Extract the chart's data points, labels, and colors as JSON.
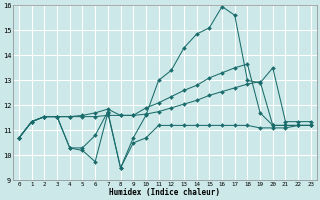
{
  "xlabel": "Humidex (Indice chaleur)",
  "bg_color": "#cce8e8",
  "grid_color": "#ffffff",
  "line_color": "#1a6b6b",
  "xlim": [
    -0.5,
    23.5
  ],
  "ylim": [
    9,
    16
  ],
  "yticks": [
    9,
    10,
    11,
    12,
    13,
    14,
    15,
    16
  ],
  "xticks": [
    0,
    1,
    2,
    3,
    4,
    5,
    6,
    7,
    8,
    9,
    10,
    11,
    12,
    13,
    14,
    15,
    16,
    17,
    18,
    19,
    20,
    21,
    22,
    23
  ],
  "series": [
    {
      "x": [
        0,
        1,
        2,
        3,
        4,
        5,
        6,
        7,
        8,
        9,
        10,
        11,
        12,
        13,
        14,
        15,
        16,
        17,
        18,
        19,
        20,
        21,
        22,
        23
      ],
      "y": [
        10.7,
        11.35,
        11.55,
        11.55,
        10.3,
        10.2,
        9.75,
        11.7,
        9.5,
        10.5,
        10.7,
        11.2,
        11.2,
        11.2,
        11.2,
        11.2,
        11.2,
        11.2,
        11.2,
        11.1,
        11.1,
        11.1,
        11.2,
        11.2
      ]
    },
    {
      "x": [
        0,
        1,
        2,
        3,
        4,
        5,
        6,
        7,
        8,
        9,
        10,
        11,
        12,
        13,
        14,
        15,
        16,
        17,
        18,
        19,
        20,
        21,
        22,
        23
      ],
      "y": [
        10.7,
        11.35,
        11.55,
        11.55,
        11.55,
        11.55,
        11.55,
        11.6,
        11.6,
        11.6,
        11.65,
        11.75,
        11.9,
        12.05,
        12.2,
        12.4,
        12.55,
        12.7,
        12.85,
        12.95,
        11.2,
        11.2,
        11.2,
        11.2
      ]
    },
    {
      "x": [
        0,
        1,
        2,
        3,
        4,
        5,
        6,
        7,
        8,
        9,
        10,
        11,
        12,
        13,
        14,
        15,
        16,
        17,
        18,
        19,
        20,
        21,
        22,
        23
      ],
      "y": [
        10.7,
        11.35,
        11.55,
        11.55,
        11.55,
        11.6,
        11.7,
        11.85,
        11.6,
        11.6,
        11.9,
        12.1,
        12.35,
        12.6,
        12.8,
        13.1,
        13.3,
        13.5,
        13.65,
        11.7,
        11.2,
        11.2,
        11.2,
        11.2
      ]
    },
    {
      "x": [
        0,
        1,
        2,
        3,
        4,
        5,
        6,
        7,
        8,
        9,
        10,
        11,
        12,
        13,
        14,
        15,
        16,
        17,
        18,
        19,
        20,
        21,
        22,
        23
      ],
      "y": [
        10.7,
        11.35,
        11.55,
        11.55,
        10.3,
        10.3,
        10.8,
        11.75,
        9.5,
        10.7,
        11.6,
        13.0,
        13.4,
        14.3,
        14.85,
        15.1,
        15.95,
        15.6,
        13.0,
        12.9,
        13.5,
        11.35,
        11.35,
        11.35
      ]
    }
  ]
}
